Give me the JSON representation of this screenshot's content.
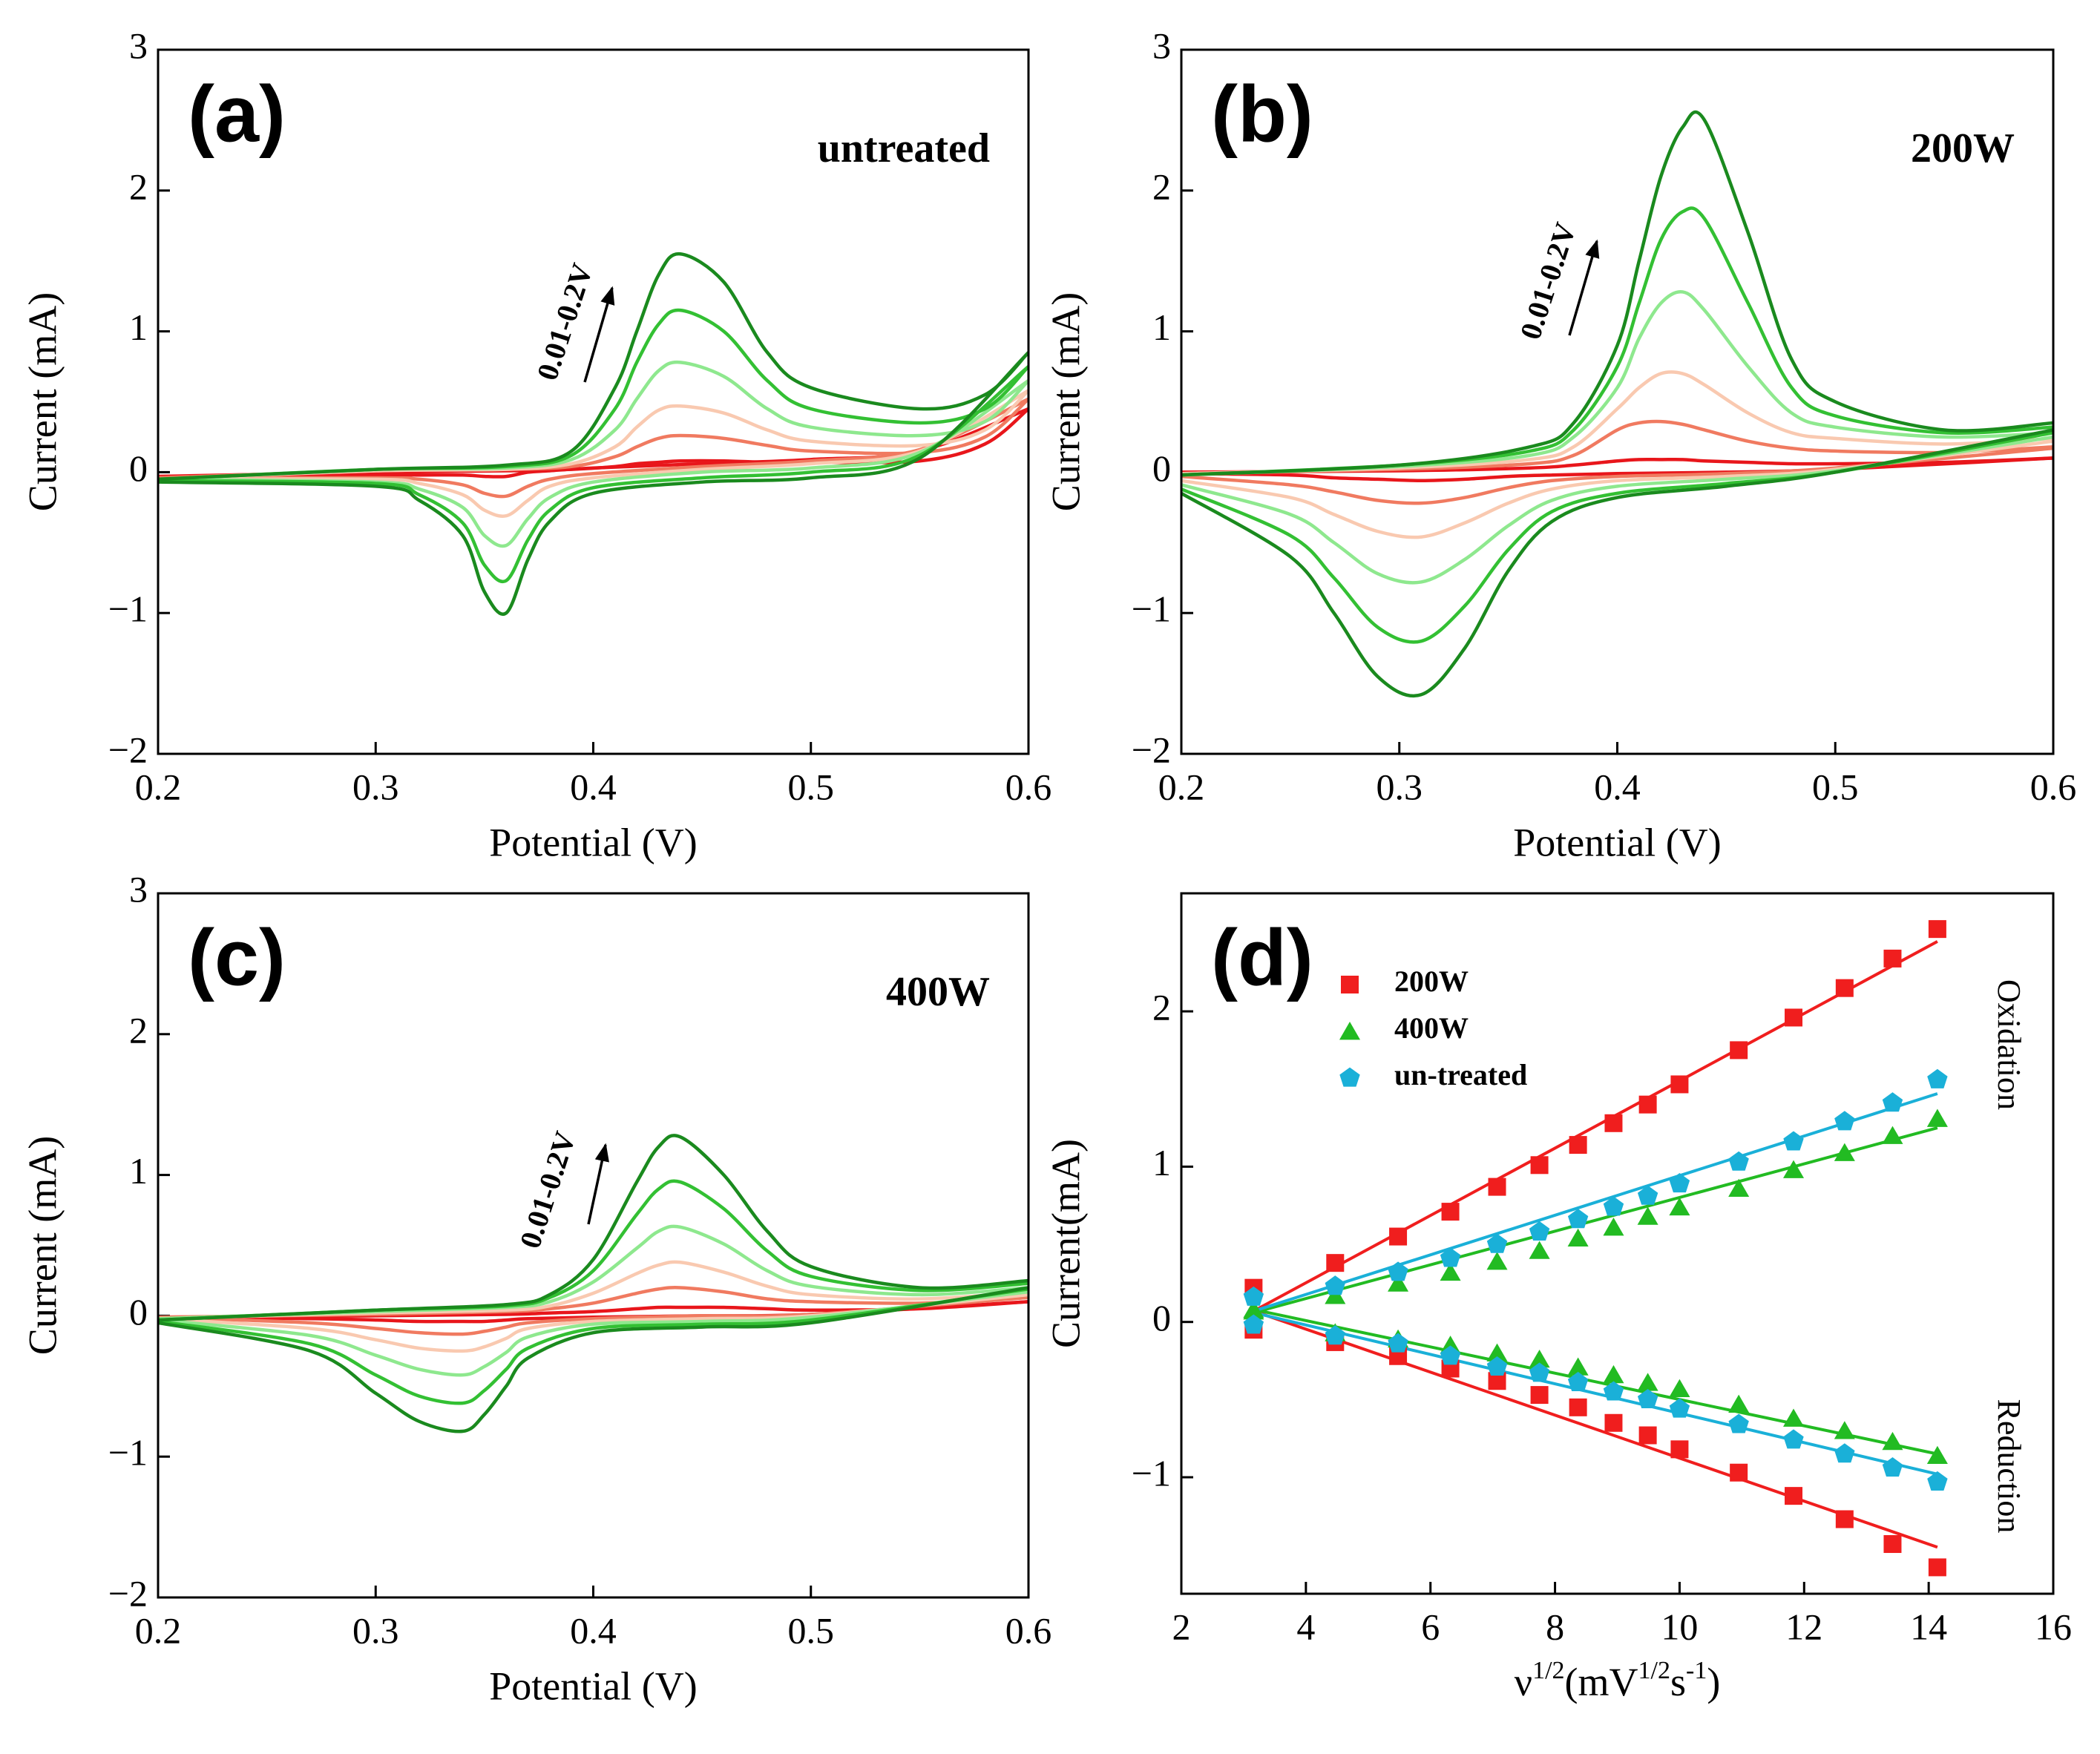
{
  "chart_data": [
    {
      "type": "cv",
      "label": "(a)",
      "annotation": "untreated",
      "arrow_label": "0.01-0.2V",
      "xlabel": "Potential (V)",
      "ylabel": "Current (mA)",
      "xlim": [
        0.2,
        0.6
      ],
      "xticks": [
        0.2,
        0.3,
        0.4,
        0.5,
        0.6
      ],
      "ylim": [
        -2,
        3
      ],
      "yticks": [
        {
          "value": -2,
          "label": "−2"
        },
        {
          "value": -1,
          "label": "−1"
        },
        0,
        1,
        2,
        3
      ],
      "forward_x": [
        0.2,
        0.3,
        0.36,
        0.39,
        0.41,
        0.42,
        0.43,
        0.44,
        0.46,
        0.48,
        0.5,
        0.55,
        0.58,
        0.6
      ],
      "reverse_x": [
        0.6,
        0.55,
        0.5,
        0.45,
        0.4,
        0.38,
        0.37,
        0.36,
        0.35,
        0.34,
        0.32,
        0.3,
        0.2
      ],
      "series": [
        {
          "color": "#e8161b",
          "forward": [
            -0.03,
            0.0,
            0.01,
            0.02,
            0.04,
            0.06,
            0.07,
            0.08,
            0.08,
            0.07,
            0.07,
            0.08,
            0.2,
            0.45
          ],
          "reverse": [
            0.45,
            0.15,
            0.09,
            0.06,
            0.03,
            0.01,
            0.0,
            -0.03,
            -0.03,
            -0.02,
            -0.02,
            -0.02,
            -0.03
          ]
        },
        {
          "color": "#f07a60",
          "forward": [
            -0.04,
            0.01,
            0.02,
            0.04,
            0.11,
            0.18,
            0.24,
            0.26,
            0.24,
            0.19,
            0.15,
            0.14,
            0.25,
            0.52
          ],
          "reverse": [
            0.52,
            0.16,
            0.08,
            0.04,
            -0.01,
            -0.05,
            -0.1,
            -0.17,
            -0.15,
            -0.09,
            -0.05,
            -0.04,
            -0.04
          ]
        },
        {
          "color": "#f9c9b0",
          "forward": [
            -0.05,
            0.01,
            0.02,
            0.06,
            0.18,
            0.32,
            0.44,
            0.47,
            0.42,
            0.3,
            0.22,
            0.19,
            0.3,
            0.58
          ],
          "reverse": [
            0.58,
            0.15,
            0.06,
            0.02,
            -0.04,
            -0.1,
            -0.2,
            -0.31,
            -0.27,
            -0.16,
            -0.08,
            -0.05,
            -0.05
          ]
        },
        {
          "color": "#8ee88e",
          "forward": [
            -0.05,
            0.02,
            0.03,
            0.09,
            0.3,
            0.52,
            0.72,
            0.78,
            0.68,
            0.45,
            0.32,
            0.26,
            0.36,
            0.65
          ],
          "reverse": [
            0.65,
            0.14,
            0.03,
            0.0,
            -0.07,
            -0.18,
            -0.33,
            -0.52,
            -0.45,
            -0.25,
            -0.12,
            -0.07,
            -0.05
          ]
        },
        {
          "color": "#33c033",
          "forward": [
            -0.05,
            0.02,
            0.04,
            0.12,
            0.45,
            0.78,
            1.05,
            1.15,
            1.0,
            0.65,
            0.45,
            0.35,
            0.45,
            0.75
          ],
          "reverse": [
            0.75,
            0.12,
            0.0,
            -0.04,
            -0.11,
            -0.27,
            -0.48,
            -0.77,
            -0.66,
            -0.36,
            -0.16,
            -0.08,
            -0.06
          ]
        },
        {
          "color": "#1a8a1e",
          "forward": [
            -0.05,
            0.02,
            0.05,
            0.15,
            0.6,
            1.0,
            1.4,
            1.55,
            1.35,
            0.85,
            0.6,
            0.45,
            0.55,
            0.85
          ],
          "reverse": [
            0.85,
            0.1,
            -0.04,
            -0.07,
            -0.15,
            -0.35,
            -0.62,
            -1.0,
            -0.85,
            -0.45,
            -0.2,
            -0.1,
            -0.07
          ]
        }
      ]
    },
    {
      "type": "cv",
      "label": "(b)",
      "annotation": "200W",
      "arrow_label": "0.01-0.2V",
      "xlabel": "Potential (V)",
      "ylabel": "Current (mA)",
      "xlim": [
        0.2,
        0.6
      ],
      "xticks": [
        0.2,
        0.3,
        0.4,
        0.5,
        0.6
      ],
      "ylim": [
        -2,
        3
      ],
      "yticks": [
        {
          "value": -2,
          "label": "−2"
        },
        {
          "value": -1,
          "label": "−1"
        },
        0,
        1,
        2,
        3
      ],
      "forward_x": [
        0.2,
        0.3,
        0.36,
        0.38,
        0.4,
        0.41,
        0.42,
        0.43,
        0.44,
        0.46,
        0.48,
        0.5,
        0.55,
        0.6
      ],
      "reverse_x": [
        0.6,
        0.5,
        0.45,
        0.4,
        0.37,
        0.35,
        0.33,
        0.31,
        0.29,
        0.27,
        0.25,
        0.2
      ],
      "series": [
        {
          "color": "#e8161b",
          "forward": [
            0.0,
            0.01,
            0.03,
            0.05,
            0.08,
            0.09,
            0.09,
            0.09,
            0.08,
            0.07,
            0.06,
            0.06,
            0.07,
            0.1
          ],
          "reverse": [
            0.1,
            0.02,
            0.0,
            -0.01,
            -0.02,
            -0.03,
            -0.05,
            -0.06,
            -0.05,
            -0.04,
            -0.02,
            -0.01
          ]
        },
        {
          "color": "#f07a60",
          "forward": [
            -0.01,
            0.02,
            0.06,
            0.12,
            0.3,
            0.35,
            0.36,
            0.34,
            0.3,
            0.22,
            0.17,
            0.15,
            0.14,
            0.18
          ],
          "reverse": [
            0.17,
            0.03,
            -0.01,
            -0.03,
            -0.06,
            -0.11,
            -0.18,
            -0.22,
            -0.2,
            -0.14,
            -0.09,
            -0.03
          ]
        },
        {
          "color": "#f9c9b0",
          "forward": [
            -0.01,
            0.03,
            0.09,
            0.18,
            0.45,
            0.6,
            0.7,
            0.7,
            0.62,
            0.42,
            0.28,
            0.24,
            0.2,
            0.24
          ],
          "reverse": [
            0.22,
            0.02,
            -0.03,
            -0.06,
            -0.12,
            -0.22,
            -0.36,
            -0.46,
            -0.42,
            -0.3,
            -0.18,
            -0.06
          ]
        },
        {
          "color": "#8ee88e",
          "forward": [
            -0.02,
            0.04,
            0.12,
            0.25,
            0.6,
            0.95,
            1.2,
            1.28,
            1.15,
            0.75,
            0.42,
            0.32,
            0.25,
            0.28
          ],
          "reverse": [
            0.25,
            0.01,
            -0.05,
            -0.1,
            -0.2,
            -0.38,
            -0.62,
            -0.78,
            -0.72,
            -0.5,
            -0.3,
            -0.09
          ]
        },
        {
          "color": "#33c033",
          "forward": [
            -0.02,
            0.05,
            0.15,
            0.3,
            0.75,
            1.2,
            1.65,
            1.85,
            1.8,
            1.2,
            0.6,
            0.4,
            0.28,
            0.32
          ],
          "reverse": [
            0.28,
            0.0,
            -0.08,
            -0.15,
            -0.28,
            -0.55,
            -0.95,
            -1.2,
            -1.1,
            -0.75,
            -0.45,
            -0.12
          ]
        },
        {
          "color": "#1a8a1e",
          "forward": [
            -0.02,
            0.05,
            0.18,
            0.35,
            0.9,
            1.5,
            2.1,
            2.45,
            2.5,
            1.7,
            0.8,
            0.5,
            0.3,
            0.35
          ],
          "reverse": [
            0.3,
            0.0,
            -0.1,
            -0.18,
            -0.35,
            -0.7,
            -1.25,
            -1.58,
            -1.45,
            -1.0,
            -0.6,
            -0.15
          ]
        }
      ]
    },
    {
      "type": "cv",
      "label": "(c)",
      "annotation": "400W",
      "arrow_label": "0.01-0.2V",
      "xlabel": "Potential (V)",
      "ylabel": "Current (mA)",
      "xlim": [
        0.2,
        0.6
      ],
      "xticks": [
        0.2,
        0.3,
        0.4,
        0.5,
        0.6
      ],
      "ylim": [
        -2,
        3
      ],
      "yticks": [
        {
          "value": -2,
          "label": "−2"
        },
        {
          "value": -1,
          "label": "−1"
        },
        0,
        1,
        2,
        3
      ],
      "forward_x": [
        0.2,
        0.3,
        0.36,
        0.38,
        0.4,
        0.42,
        0.43,
        0.44,
        0.46,
        0.48,
        0.5,
        0.55,
        0.6
      ],
      "reverse_x": [
        0.6,
        0.5,
        0.45,
        0.4,
        0.37,
        0.36,
        0.35,
        0.34,
        0.32,
        0.3,
        0.27,
        0.2
      ],
      "series": [
        {
          "color": "#e8161b",
          "forward": [
            -0.01,
            0.0,
            0.01,
            0.02,
            0.03,
            0.05,
            0.06,
            0.06,
            0.06,
            0.05,
            0.04,
            0.05,
            0.1
          ],
          "reverse": [
            0.1,
            0.01,
            0.0,
            -0.01,
            -0.02,
            -0.03,
            -0.04,
            -0.04,
            -0.04,
            -0.03,
            -0.02,
            -0.01
          ]
        },
        {
          "color": "#f07a60",
          "forward": [
            -0.01,
            0.01,
            0.03,
            0.05,
            0.09,
            0.16,
            0.19,
            0.2,
            0.17,
            0.12,
            0.1,
            0.09,
            0.13
          ],
          "reverse": [
            0.13,
            0.01,
            0.0,
            -0.02,
            -0.05,
            -0.08,
            -0.11,
            -0.13,
            -0.12,
            -0.09,
            -0.05,
            -0.01
          ]
        },
        {
          "color": "#f9c9b0",
          "forward": [
            -0.02,
            0.02,
            0.04,
            0.07,
            0.16,
            0.3,
            0.36,
            0.38,
            0.31,
            0.21,
            0.15,
            0.12,
            0.17
          ],
          "reverse": [
            0.15,
            0.0,
            -0.02,
            -0.04,
            -0.09,
            -0.16,
            -0.22,
            -0.25,
            -0.23,
            -0.17,
            -0.09,
            -0.02
          ]
        },
        {
          "color": "#8ee88e",
          "forward": [
            -0.02,
            0.03,
            0.06,
            0.1,
            0.24,
            0.48,
            0.6,
            0.63,
            0.51,
            0.32,
            0.21,
            0.15,
            0.2
          ],
          "reverse": [
            0.17,
            -0.01,
            -0.04,
            -0.06,
            -0.15,
            -0.26,
            -0.36,
            -0.42,
            -0.38,
            -0.28,
            -0.14,
            -0.03
          ]
        },
        {
          "color": "#33c033",
          "forward": [
            -0.03,
            0.04,
            0.07,
            0.13,
            0.32,
            0.72,
            0.9,
            0.95,
            0.76,
            0.46,
            0.28,
            0.18,
            0.23
          ],
          "reverse": [
            0.19,
            -0.03,
            -0.06,
            -0.09,
            -0.23,
            -0.38,
            -0.53,
            -0.62,
            -0.57,
            -0.42,
            -0.2,
            -0.04
          ]
        },
        {
          "color": "#1a8a1e",
          "forward": [
            -0.03,
            0.04,
            0.08,
            0.15,
            0.4,
            0.95,
            1.2,
            1.27,
            1.0,
            0.6,
            0.35,
            0.2,
            0.25
          ],
          "reverse": [
            0.2,
            -0.05,
            -0.08,
            -0.12,
            -0.3,
            -0.5,
            -0.7,
            -0.82,
            -0.75,
            -0.55,
            -0.25,
            -0.05
          ]
        }
      ]
    },
    {
      "type": "scatter_fit",
      "label": "(d)",
      "legend": "upper left",
      "annotations": [
        "Oxidation",
        "Reduction"
      ],
      "xlabel_parts": [
        "ν",
        "1/2",
        "(mV",
        "1/2",
        "s",
        "-1",
        ")"
      ],
      "ylabel": "Current(mA)",
      "xlim": [
        2,
        16
      ],
      "xticks": [
        2,
        4,
        6,
        8,
        10,
        12,
        14,
        16
      ],
      "ylim": [
        -1.75,
        2.76
      ],
      "yticks": [
        {
          "value": -1,
          "label": "−1"
        },
        0,
        1,
        2
      ],
      "x": [
        3.16,
        4.47,
        5.48,
        6.32,
        7.07,
        7.75,
        8.37,
        8.94,
        9.49,
        10,
        10.95,
        11.83,
        12.65,
        13.42,
        14.14
      ],
      "fit_x": [
        3.16,
        14.14
      ],
      "series": [
        {
          "name": "200W",
          "color": "#f01e1e",
          "marker": "square",
          "oxidation": [
            0.22,
            0.38,
            0.55,
            0.71,
            0.87,
            1.01,
            1.14,
            1.28,
            1.4,
            1.53,
            1.75,
            1.96,
            2.15,
            2.34,
            2.53
          ],
          "reduction": [
            -0.05,
            -0.13,
            -0.22,
            -0.3,
            -0.38,
            -0.47,
            -0.55,
            -0.65,
            -0.73,
            -0.82,
            -0.97,
            -1.12,
            -1.27,
            -1.43,
            -1.58
          ],
          "fit_oxidation": [
            0.07,
            2.45
          ],
          "fit_reduction": [
            0.07,
            -1.45
          ]
        },
        {
          "name": "400W",
          "color": "#22bb22",
          "marker": "triangle",
          "oxidation": [
            0.08,
            0.17,
            0.25,
            0.32,
            0.39,
            0.46,
            0.54,
            0.61,
            0.68,
            0.74,
            0.86,
            0.98,
            1.09,
            1.2,
            1.31
          ],
          "reduction": [
            0.07,
            -0.07,
            -0.11,
            -0.15,
            -0.2,
            -0.24,
            -0.29,
            -0.34,
            -0.39,
            -0.43,
            -0.53,
            -0.62,
            -0.7,
            -0.77,
            -0.86
          ],
          "fit_oxidation": [
            0.06,
            1.25
          ],
          "fit_reduction": [
            0.08,
            -0.85
          ]
        },
        {
          "name": "un-treated",
          "color": "#1ab0d8",
          "marker": "pentagon",
          "oxidation": [
            0.16,
            0.23,
            0.32,
            0.41,
            0.5,
            0.58,
            0.66,
            0.74,
            0.81,
            0.89,
            1.03,
            1.16,
            1.29,
            1.41,
            1.56
          ],
          "reduction": [
            -0.02,
            -0.09,
            -0.14,
            -0.22,
            -0.29,
            -0.33,
            -0.39,
            -0.45,
            -0.5,
            -0.56,
            -0.66,
            -0.76,
            -0.85,
            -0.94,
            -1.03
          ],
          "fit_oxidation": [
            0.07,
            1.47
          ],
          "fit_reduction": [
            0.06,
            -0.98
          ]
        }
      ]
    }
  ]
}
